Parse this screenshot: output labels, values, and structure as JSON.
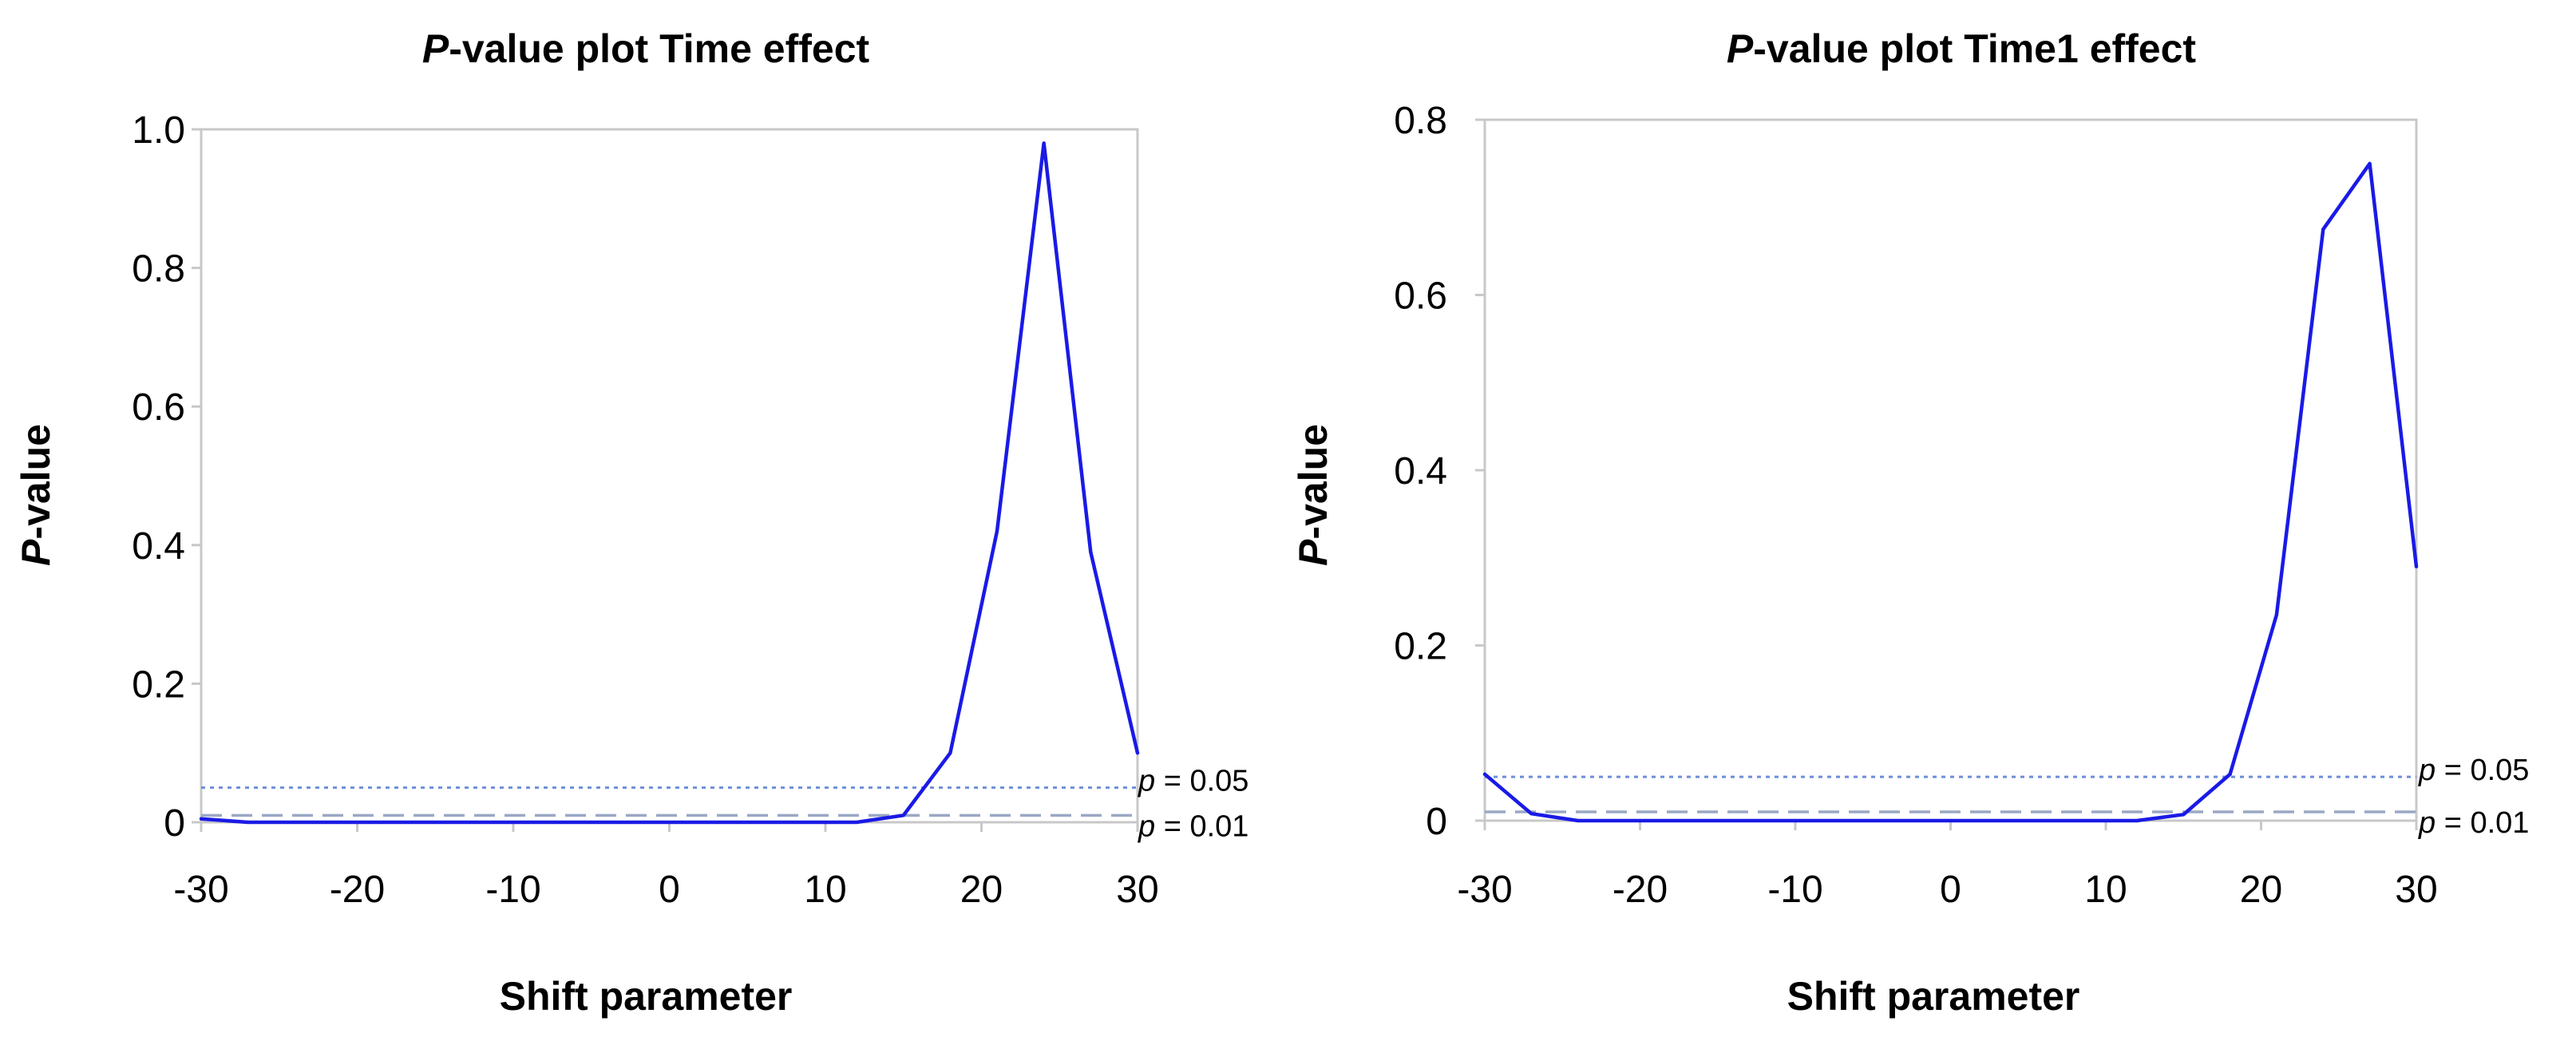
{
  "colors": {
    "series": "#1a1ae6",
    "ref_005": "#6e8ed8",
    "ref_001": "#9aa8c4",
    "frame": "#c8c8c8"
  },
  "chart_data": [
    {
      "type": "line",
      "title": {
        "italic": "P",
        "rest": "-value plot Time effect"
      },
      "xlabel": "Shift parameter",
      "ylabel": {
        "italic": "P",
        "rest": "-value"
      },
      "xlim": [
        -30,
        30
      ],
      "ylim": [
        0,
        1.0
      ],
      "xticks": [
        -30,
        -20,
        -10,
        0,
        10,
        20,
        30
      ],
      "xtick_labels": [
        "-30",
        "-20",
        "-10",
        "0",
        "10",
        "20",
        "30"
      ],
      "yticks": [
        0,
        0.2,
        0.4,
        0.6,
        0.8,
        1.0
      ],
      "ytick_labels": [
        "0",
        "0.2",
        "0.4",
        "0.6",
        "0.8",
        "1.0"
      ],
      "grid": false,
      "series": [
        {
          "name": "P-value",
          "x": [
            -30,
            -27,
            -24,
            -21,
            -18,
            -15,
            -12,
            -9,
            -6,
            -3,
            0,
            3,
            6,
            9,
            12,
            15,
            18,
            21,
            24,
            27,
            30
          ],
          "values": [
            0.005,
            0.0,
            0.0,
            0.0,
            0.0,
            0.0,
            0.0,
            0.0,
            0.0,
            0.0,
            0.0,
            0.0,
            0.0,
            0.0,
            0.0,
            0.01,
            0.1,
            0.42,
            0.98,
            0.39,
            0.1
          ]
        }
      ],
      "reference_lines": [
        {
          "y": 0.05,
          "style": "dotted",
          "label_italic": "p",
          "label_rest": " = 0.05"
        },
        {
          "y": 0.01,
          "style": "dashed",
          "label_italic": "p",
          "label_rest": " = 0.01"
        }
      ]
    },
    {
      "type": "line",
      "title": {
        "italic": "P",
        "rest": "-value plot Time1 effect"
      },
      "xlabel": "Shift parameter",
      "ylabel": {
        "italic": "P",
        "rest": "-value"
      },
      "xlim": [
        -30,
        30
      ],
      "ylim": [
        0,
        0.8
      ],
      "xticks": [
        -30,
        -20,
        -10,
        0,
        10,
        20,
        30
      ],
      "xtick_labels": [
        "-30",
        "-20",
        "-10",
        "0",
        "10",
        "20",
        "30"
      ],
      "yticks": [
        0,
        0.2,
        0.4,
        0.6,
        0.8
      ],
      "ytick_labels": [
        "0",
        "0.2",
        "0.4",
        "0.6",
        "0.8"
      ],
      "grid": false,
      "series": [
        {
          "name": "P-value",
          "x": [
            -30,
            -27,
            -24,
            -21,
            -18,
            -15,
            -12,
            -9,
            -6,
            -3,
            0,
            3,
            6,
            9,
            12,
            15,
            18,
            21,
            24,
            27,
            30
          ],
          "values": [
            0.053,
            0.008,
            0.0,
            0.0,
            0.0,
            0.0,
            0.0,
            0.0,
            0.0,
            0.0,
            0.0,
            0.0,
            0.0,
            0.0,
            0.0,
            0.007,
            0.053,
            0.235,
            0.675,
            0.75,
            0.29
          ]
        }
      ],
      "reference_lines": [
        {
          "y": 0.05,
          "style": "dotted",
          "label_italic": "p",
          "label_rest": " = 0.05"
        },
        {
          "y": 0.01,
          "style": "dashed",
          "label_italic": "p",
          "label_rest": " = 0.01"
        }
      ]
    }
  ]
}
